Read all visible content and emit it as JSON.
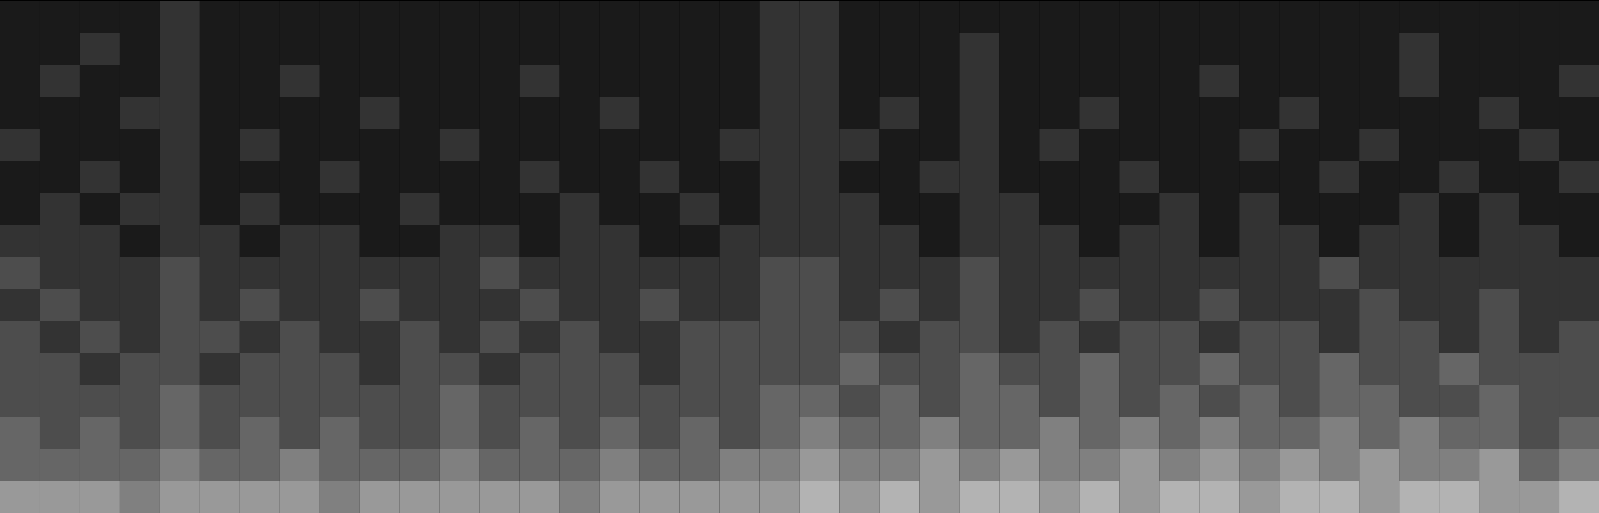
{
  "chart_data": {
    "type": "heatmap",
    "tick_labels": false,
    "zlim": [
      0,
      10
    ],
    "cells": [
      [
        1,
        1,
        1,
        1,
        2,
        1,
        1,
        1,
        1,
        1,
        1,
        1,
        1,
        1,
        1,
        1,
        1,
        1,
        1,
        2,
        2,
        1,
        1,
        1,
        1,
        1,
        1,
        1,
        1,
        1,
        1,
        1,
        1,
        1,
        1,
        1,
        1,
        1,
        1,
        1
      ],
      [
        1,
        1,
        2,
        1,
        2,
        1,
        1,
        1,
        1,
        1,
        1,
        1,
        1,
        1,
        1,
        1,
        1,
        1,
        1,
        2,
        2,
        1,
        1,
        1,
        2,
        1,
        1,
        1,
        1,
        1,
        1,
        1,
        1,
        1,
        1,
        2,
        1,
        1,
        1,
        1
      ],
      [
        1,
        2,
        1,
        1,
        2,
        1,
        1,
        2,
        1,
        1,
        1,
        1,
        1,
        2,
        1,
        1,
        1,
        1,
        1,
        2,
        2,
        1,
        1,
        1,
        2,
        1,
        1,
        1,
        1,
        1,
        2,
        1,
        1,
        1,
        1,
        2,
        1,
        1,
        1,
        2
      ],
      [
        1,
        1,
        1,
        2,
        2,
        1,
        1,
        1,
        1,
        2,
        1,
        1,
        1,
        1,
        1,
        2,
        1,
        1,
        1,
        2,
        2,
        1,
        2,
        1,
        2,
        1,
        1,
        2,
        1,
        1,
        1,
        1,
        2,
        1,
        1,
        1,
        1,
        2,
        1,
        1
      ],
      [
        2,
        1,
        1,
        1,
        2,
        1,
        2,
        1,
        1,
        1,
        1,
        2,
        1,
        1,
        1,
        1,
        1,
        1,
        2,
        2,
        2,
        2,
        1,
        1,
        2,
        1,
        2,
        1,
        1,
        1,
        1,
        2,
        1,
        1,
        2,
        1,
        1,
        1,
        2,
        1
      ],
      [
        1,
        1,
        2,
        1,
        2,
        1,
        1,
        1,
        2,
        1,
        1,
        1,
        1,
        2,
        1,
        1,
        2,
        1,
        1,
        2,
        2,
        1,
        1,
        2,
        2,
        1,
        1,
        1,
        2,
        1,
        1,
        1,
        1,
        2,
        1,
        1,
        2,
        1,
        1,
        2
      ],
      [
        1,
        2,
        1,
        2,
        2,
        1,
        2,
        1,
        1,
        1,
        2,
        1,
        1,
        1,
        2,
        1,
        1,
        2,
        1,
        2,
        2,
        2,
        1,
        1,
        2,
        2,
        1,
        1,
        1,
        2,
        1,
        2,
        1,
        1,
        1,
        2,
        1,
        2,
        1,
        1
      ],
      [
        2,
        2,
        2,
        1,
        2,
        2,
        1,
        2,
        2,
        1,
        1,
        2,
        2,
        1,
        2,
        2,
        1,
        1,
        2,
        2,
        2,
        2,
        2,
        1,
        2,
        2,
        2,
        1,
        2,
        2,
        1,
        2,
        2,
        1,
        2,
        2,
        1,
        2,
        2,
        1
      ],
      [
        3,
        2,
        2,
        2,
        3,
        2,
        2,
        2,
        2,
        2,
        2,
        2,
        3,
        2,
        2,
        2,
        2,
        2,
        2,
        3,
        3,
        2,
        2,
        2,
        3,
        2,
        2,
        2,
        2,
        2,
        2,
        2,
        2,
        3,
        2,
        2,
        2,
        2,
        2,
        2
      ],
      [
        2,
        3,
        2,
        2,
        3,
        2,
        3,
        2,
        2,
        3,
        2,
        2,
        2,
        3,
        2,
        2,
        3,
        2,
        2,
        3,
        3,
        2,
        3,
        2,
        3,
        2,
        2,
        3,
        2,
        2,
        3,
        2,
        2,
        2,
        3,
        2,
        2,
        3,
        2,
        2
      ],
      [
        3,
        2,
        3,
        2,
        3,
        3,
        2,
        3,
        2,
        2,
        3,
        2,
        3,
        2,
        3,
        2,
        2,
        3,
        3,
        3,
        3,
        3,
        2,
        3,
        3,
        2,
        3,
        2,
        3,
        3,
        2,
        3,
        3,
        2,
        3,
        3,
        2,
        3,
        2,
        3
      ],
      [
        3,
        3,
        2,
        3,
        3,
        2,
        3,
        3,
        3,
        2,
        3,
        3,
        2,
        3,
        3,
        3,
        2,
        3,
        3,
        3,
        3,
        4,
        3,
        3,
        4,
        3,
        3,
        4,
        3,
        3,
        4,
        3,
        3,
        4,
        3,
        3,
        4,
        3,
        3,
        3
      ],
      [
        3,
        3,
        3,
        3,
        4,
        3,
        3,
        3,
        3,
        3,
        3,
        4,
        3,
        3,
        3,
        3,
        3,
        3,
        3,
        4,
        4,
        3,
        4,
        3,
        4,
        4,
        3,
        4,
        3,
        4,
        3,
        4,
        3,
        4,
        4,
        3,
        3,
        4,
        3,
        3
      ],
      [
        4,
        3,
        4,
        3,
        4,
        3,
        4,
        3,
        4,
        3,
        3,
        4,
        3,
        4,
        3,
        4,
        3,
        4,
        3,
        4,
        5,
        4,
        4,
        5,
        4,
        4,
        5,
        4,
        5,
        4,
        5,
        4,
        4,
        5,
        4,
        5,
        4,
        4,
        3,
        4
      ],
      [
        4,
        4,
        4,
        4,
        5,
        4,
        4,
        5,
        4,
        4,
        4,
        5,
        4,
        4,
        4,
        5,
        4,
        4,
        5,
        5,
        6,
        5,
        5,
        6,
        5,
        6,
        5,
        5,
        6,
        5,
        6,
        5,
        6,
        5,
        6,
        5,
        5,
        6,
        4,
        5
      ],
      [
        6,
        6,
        6,
        5,
        6,
        6,
        6,
        6,
        5,
        6,
        6,
        6,
        6,
        6,
        5,
        6,
        6,
        6,
        6,
        6,
        7,
        6,
        7,
        6,
        7,
        7,
        6,
        7,
        6,
        7,
        7,
        6,
        7,
        7,
        6,
        7,
        7,
        6,
        6,
        7
      ]
    ]
  }
}
